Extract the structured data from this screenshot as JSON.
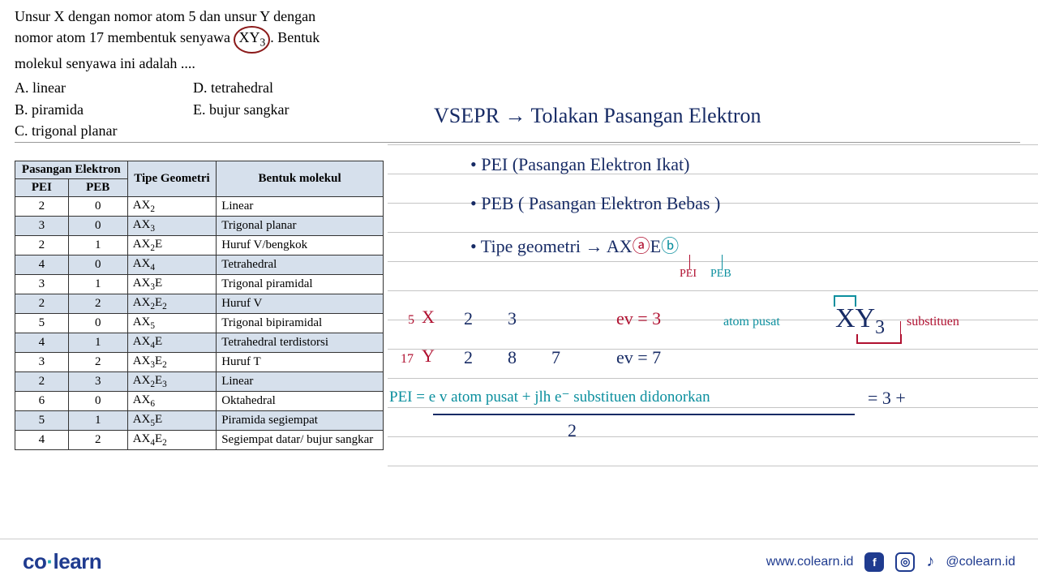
{
  "question": {
    "line1a": "Unsur X dengan nomor atom 5 dan unsur Y dengan",
    "line2a": "nomor atom 17 membentuk senyawa ",
    "circledFormula": "XY",
    "circledSub": "3",
    "line2c": ". Bentuk",
    "line3": "molekul senyawa ini adalah ....",
    "options": {
      "A": "A.    linear",
      "B": "B.    piramida",
      "C": "C.    trigonal planar",
      "D": "D.    tetrahedral",
      "E": "E.    bujur sangkar"
    }
  },
  "table": {
    "header_group": "Pasangan Elektron",
    "header_pei": "PEI",
    "header_peb": "PEB",
    "header_tipe": "Tipe Geometri",
    "header_bentuk": "Bentuk molekul",
    "rows": [
      {
        "pei": "2",
        "peb": "0",
        "tipe": "AX",
        "tipeSub": "2",
        "bentuk": "Linear"
      },
      {
        "pei": "3",
        "peb": "0",
        "tipe": "AX",
        "tipeSub": "3",
        "bentuk": "Trigonal planar"
      },
      {
        "pei": "2",
        "peb": "1",
        "tipe": "AX",
        "tipeSub": "2",
        "tipeSuffix": "E",
        "bentuk": "Huruf V/bengkok"
      },
      {
        "pei": "4",
        "peb": "0",
        "tipe": "AX",
        "tipeSub": "4",
        "bentuk": "Tetrahedral"
      },
      {
        "pei": "3",
        "peb": "1",
        "tipe": "AX",
        "tipeSub": "3",
        "tipeSuffix": "E",
        "bentuk": "Trigonal piramidal"
      },
      {
        "pei": "2",
        "peb": "2",
        "tipe": "AX",
        "tipeSub": "2",
        "tipeSuffix": "E",
        "suffixSub": "2",
        "bentuk": "Huruf V"
      },
      {
        "pei": "5",
        "peb": "0",
        "tipe": "AX",
        "tipeSub": "5",
        "bentuk": "Trigonal bipiramidal"
      },
      {
        "pei": "4",
        "peb": "1",
        "tipe": "AX",
        "tipeSub": "4",
        "tipeSuffix": "E",
        "bentuk": "Tetrahedral terdistorsi"
      },
      {
        "pei": "3",
        "peb": "2",
        "tipe": "AX",
        "tipeSub": "3",
        "tipeSuffix": "E",
        "suffixSub": "2",
        "bentuk": "Huruf T"
      },
      {
        "pei": "2",
        "peb": "3",
        "tipe": "AX",
        "tipeSub": "2",
        "tipeSuffix": "E",
        "suffixSub": "3",
        "bentuk": "Linear"
      },
      {
        "pei": "6",
        "peb": "0",
        "tipe": "AX",
        "tipeSub": "6",
        "bentuk": "Oktahedral"
      },
      {
        "pei": "5",
        "peb": "1",
        "tipe": "AX",
        "tipeSub": "5",
        "tipeSuffix": "E",
        "bentuk": "Piramida segiempat"
      },
      {
        "pei": "4",
        "peb": "2",
        "tipe": "AX",
        "tipeSub": "4",
        "tipeSuffix": "E",
        "suffixSub": "2",
        "bentuk": "Segiempat datar/ bujur sangkar"
      }
    ]
  },
  "notes": {
    "vsepr": "VSEPR  →  Tolakan  Pasangan  Elektron",
    "pei_line": "•  PEI   (Pasangan  Elektron  Ikat)",
    "peb_line": "•  PEB  ( Pasangan  Elektron  Bebas )",
    "tipe_line": "•  Tipe geometri  →  AX",
    "tipe_a": "ⓐ",
    "tipe_E": "E",
    "tipe_b": "ⓑ",
    "pei_label": "PEI",
    "peb_label": "PEB",
    "atom_pusat": "atom pusat",
    "xy3_x": "X",
    "xy3_y": "Y",
    "xy3_3": "3",
    "substituen": "substituen",
    "sx_pre": "5",
    "sx": "X",
    "sx_n1": "2",
    "sx_n2": "3",
    "sx_ev": "ev = 3",
    "sy_pre": "17",
    "sy": "Y",
    "sy_n1": "2",
    "sy_n2": "8",
    "sy_n3": "7",
    "sy_ev": "ev  =  7",
    "pei_eq_l": "PEI  =  e v  atom  pusat  +  jlh  e⁻ substituen  didonorkan",
    "pei_eq_r": "=    3 +",
    "denominator": "2"
  },
  "ruled": {
    "lineHeight": 36,
    "count": 12,
    "color": "#c5c5c5"
  },
  "footer": {
    "logo_co": "co",
    "logo_dot": "·",
    "logo_learn": "learn",
    "url": "www.colearn.id",
    "handle": "@colearn.id"
  },
  "style": {
    "ink_blue": "#172b65",
    "ink_red": "#b01030",
    "ink_teal": "#0b8f9e",
    "brand_blue": "#1f3b8f",
    "brand_teal": "#1ea7b4",
    "table_header_bg": "#d6e0ec"
  }
}
